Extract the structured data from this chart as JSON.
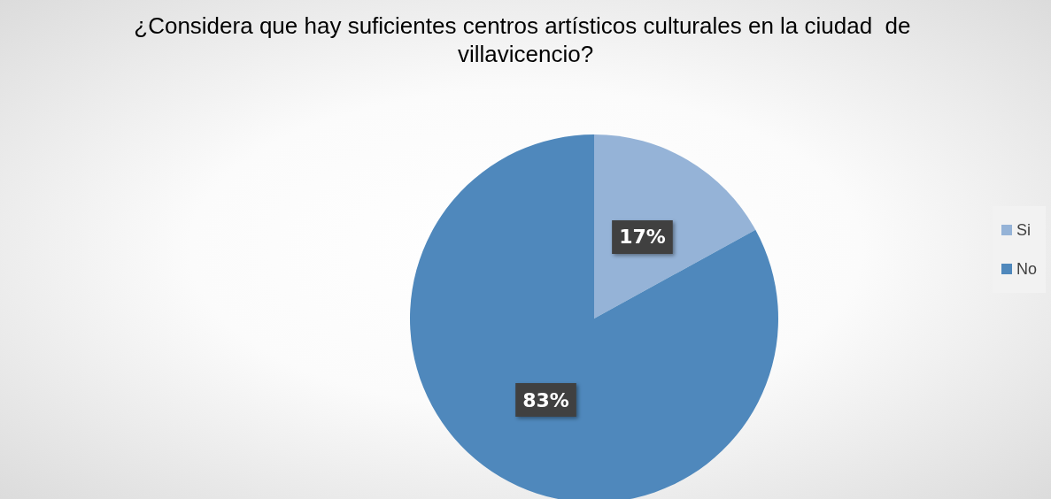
{
  "chart_data": {
    "type": "pie",
    "title": "¿Considera que hay suficientes centros artísticos culturales en la ciudad  de villavicencio?",
    "categories": [
      "Si",
      "No"
    ],
    "values": [
      17,
      83
    ],
    "colors": [
      "#95b3d7",
      "#4f88bc"
    ],
    "value_labels": [
      "17%",
      "83%"
    ],
    "legend": "right"
  }
}
